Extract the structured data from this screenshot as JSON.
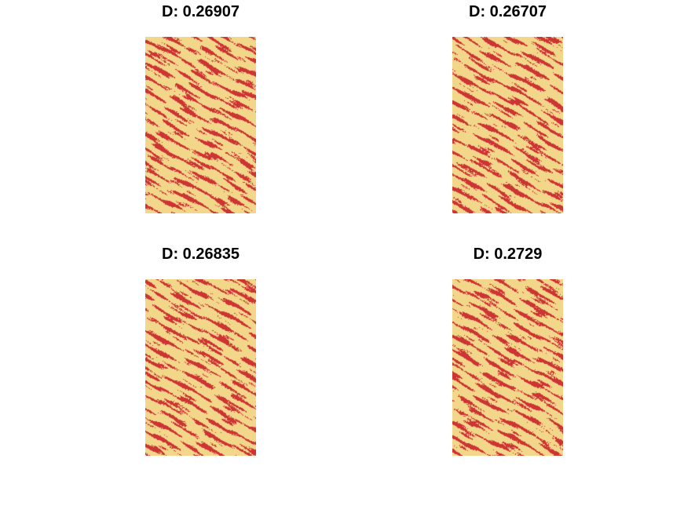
{
  "colors": {
    "background_phase": "#F2D78A",
    "foreground_phase": "#CD3434"
  },
  "panels": [
    {
      "title": "D: 0.26907",
      "seed": 11,
      "fraction": 0.269
    },
    {
      "title": "D: 0.26707",
      "seed": 23,
      "fraction": 0.267
    },
    {
      "title": "D: 0.26835",
      "seed": 37,
      "fraction": 0.268
    },
    {
      "title": "D: 0.2729",
      "seed": 53,
      "fraction": 0.273
    }
  ]
}
